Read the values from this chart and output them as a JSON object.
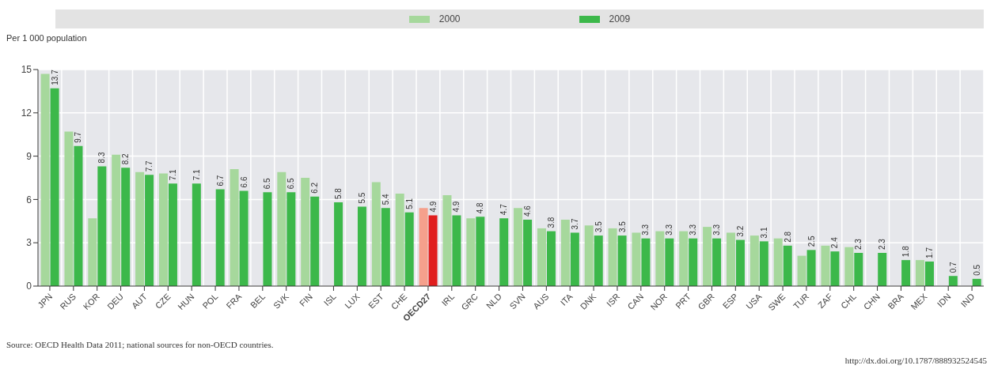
{
  "chart_data": {
    "type": "bar",
    "ylabel": "Per 1 000 population",
    "categories": [
      "JPN",
      "RUS",
      "KOR",
      "DEU",
      "AUT",
      "CZE",
      "HUN",
      "POL",
      "FRA",
      "BEL",
      "SVK",
      "FIN",
      "ISL",
      "LUX",
      "EST",
      "CHE",
      "OECD27",
      "IRL",
      "GRC",
      "NLD",
      "SVN",
      "AUS",
      "ITA",
      "DNK",
      "ISR",
      "CAN",
      "NOR",
      "PRT",
      "GBR",
      "ESP",
      "USA",
      "SWE",
      "TUR",
      "ZAF",
      "CHL",
      "CHN",
      "BRA",
      "MEX",
      "IDN",
      "IND"
    ],
    "series": [
      {
        "name": "2000",
        "color": "#a6d89c",
        "colors": [
          "#a6d89c",
          "#a6d89c",
          "#a6d89c",
          "#a6d89c",
          "#a6d89c",
          "#a6d89c",
          "#a6d89c",
          "#a6d89c",
          "#a6d89c",
          "#a6d89c",
          "#a6d89c",
          "#a6d89c",
          "#a6d89c",
          "#a6d89c",
          "#a6d89c",
          "#a6d89c",
          "#f5a08c",
          "#a6d89c",
          "#a6d89c",
          "#a6d89c",
          "#a6d89c",
          "#a6d89c",
          "#a6d89c",
          "#a6d89c",
          "#a6d89c",
          "#a6d89c",
          "#a6d89c",
          "#a6d89c",
          "#a6d89c",
          "#a6d89c",
          "#a6d89c",
          "#a6d89c",
          "#a6d89c",
          "#a6d89c",
          "#a6d89c",
          "#a6d89c",
          "#a6d89c",
          "#a6d89c",
          "#a6d89c",
          "#a6d89c"
        ],
        "values": [
          14.7,
          10.7,
          4.7,
          9.1,
          7.9,
          7.8,
          null,
          null,
          8.1,
          null,
          7.9,
          7.5,
          null,
          null,
          7.2,
          6.4,
          5.4,
          6.3,
          4.7,
          null,
          5.4,
          4.0,
          4.6,
          4.2,
          4.0,
          3.7,
          3.8,
          3.8,
          4.1,
          3.7,
          3.5,
          3.3,
          2.1,
          2.8,
          2.7,
          null,
          null,
          1.8,
          null,
          null
        ]
      },
      {
        "name": "2009",
        "color": "#3cb84a",
        "colors": [
          "#3cb84a",
          "#3cb84a",
          "#3cb84a",
          "#3cb84a",
          "#3cb84a",
          "#3cb84a",
          "#3cb84a",
          "#3cb84a",
          "#3cb84a",
          "#3cb84a",
          "#3cb84a",
          "#3cb84a",
          "#3cb84a",
          "#3cb84a",
          "#3cb84a",
          "#3cb84a",
          "#e01e1e",
          "#3cb84a",
          "#3cb84a",
          "#3cb84a",
          "#3cb84a",
          "#3cb84a",
          "#3cb84a",
          "#3cb84a",
          "#3cb84a",
          "#3cb84a",
          "#3cb84a",
          "#3cb84a",
          "#3cb84a",
          "#3cb84a",
          "#3cb84a",
          "#3cb84a",
          "#3cb84a",
          "#3cb84a",
          "#3cb84a",
          "#3cb84a",
          "#3cb84a",
          "#3cb84a",
          "#3cb84a",
          "#3cb84a"
        ],
        "values": [
          13.7,
          9.7,
          8.3,
          8.2,
          7.7,
          7.1,
          7.1,
          6.7,
          6.6,
          6.5,
          6.5,
          6.2,
          5.8,
          5.5,
          5.4,
          5.1,
          4.9,
          4.9,
          4.8,
          4.7,
          4.6,
          3.8,
          3.7,
          3.5,
          3.5,
          3.3,
          3.3,
          3.3,
          3.3,
          3.2,
          3.1,
          2.8,
          2.5,
          2.4,
          2.3,
          2.3,
          1.8,
          1.7,
          0.7,
          0.5
        ],
        "value_labels": [
          "13.7",
          "9.7",
          "8.3",
          "8.2",
          "7.7",
          "7.1",
          "7.1",
          "6.7",
          "6.6",
          "6.5",
          "6.5",
          "6.2",
          "5.8",
          "5.5",
          "5.4",
          "5.1",
          "4.9",
          "4.9",
          "4.8",
          "4.7",
          "4.6",
          "3.8",
          "3.7",
          "3.5",
          "3.5",
          "3.3",
          "3.3",
          "3.3",
          "3.3",
          "3.2",
          "3.1",
          "2.8",
          "2.5",
          "2.4",
          "2.3",
          "2.3",
          "1.8",
          "1.7",
          "0.7",
          "0.5"
        ]
      }
    ],
    "ylim": [
      0,
      15
    ],
    "yticks": [
      0,
      3,
      6,
      9,
      12,
      15
    ],
    "grid": true,
    "legend": "top",
    "annotations": [
      "Source:  OECD Health Data 2011; national sources for non-OECD countries.",
      "http://dx.doi.org/10.1787/888932524545"
    ]
  }
}
